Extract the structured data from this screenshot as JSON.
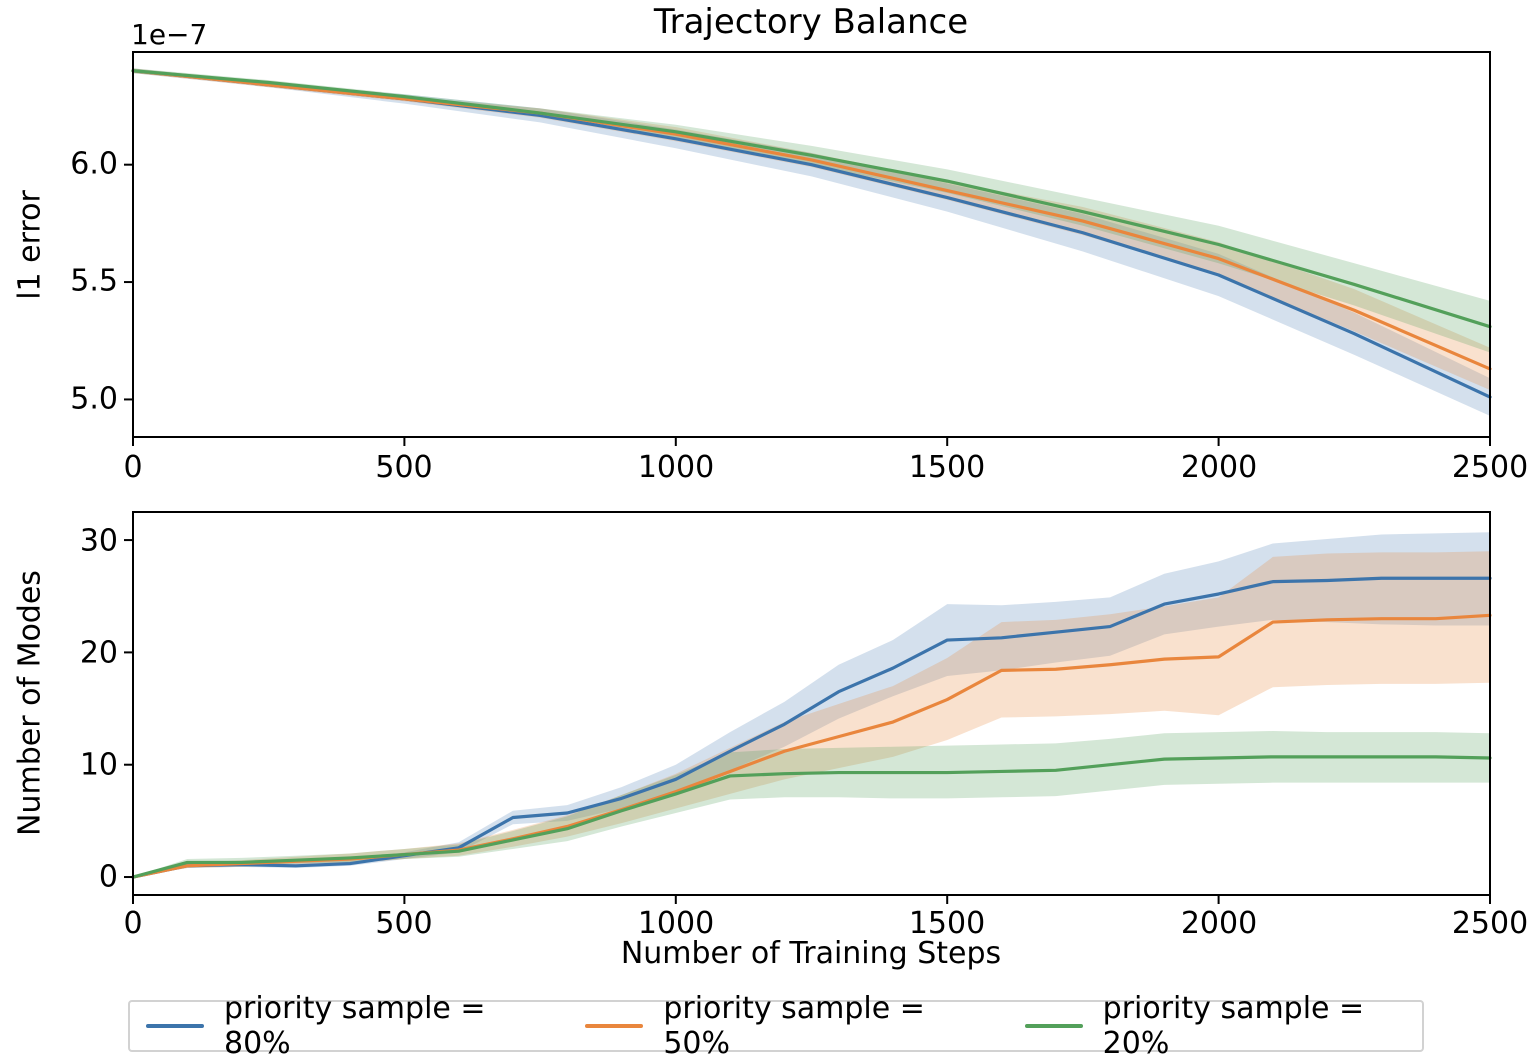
{
  "figure": {
    "title": "Trajectory Balance"
  },
  "chart_data": [
    {
      "type": "line",
      "title": "Trajectory Balance",
      "ylabel": "l1 error",
      "offset_text": "1e−7",
      "x": [
        0,
        250,
        500,
        750,
        1000,
        1250,
        1500,
        1750,
        2000,
        2250,
        2500
      ],
      "xlim": [
        0,
        2500
      ],
      "ylim": [
        4.84,
        6.48
      ],
      "xticks": [
        0,
        500,
        1000,
        1500,
        2000,
        2500
      ],
      "yticks": [
        6.0,
        5.5,
        5.0
      ],
      "xtick_labels": [
        "0",
        "500",
        "1000",
        "1500",
        "2000",
        "2500"
      ],
      "ytick_labels": [
        "6.0",
        "5.5",
        "5.0"
      ],
      "grid": false,
      "series": [
        {
          "name": "priority sample = 80%",
          "color": "#3c74ab",
          "values": [
            6.4,
            6.34,
            6.28,
            6.21,
            6.11,
            6.0,
            5.86,
            5.71,
            5.53,
            5.28,
            5.01
          ],
          "lower": [
            6.39,
            6.33,
            6.26,
            6.18,
            6.07,
            5.95,
            5.8,
            5.63,
            5.44,
            5.19,
            4.93
          ],
          "upper": [
            6.41,
            6.35,
            6.3,
            6.24,
            6.15,
            6.05,
            5.92,
            5.79,
            5.62,
            5.37,
            5.09
          ]
        },
        {
          "name": "priority sample = 50%",
          "color": "#e9863d",
          "values": [
            6.4,
            6.34,
            6.28,
            6.22,
            6.13,
            6.02,
            5.89,
            5.76,
            5.6,
            5.38,
            5.13
          ],
          "lower": [
            6.39,
            6.33,
            6.27,
            6.2,
            6.1,
            5.99,
            5.85,
            5.7,
            5.53,
            5.29,
            5.04
          ],
          "upper": [
            6.41,
            6.35,
            6.29,
            6.24,
            6.16,
            6.05,
            5.93,
            5.82,
            5.67,
            5.47,
            5.22
          ]
        },
        {
          "name": "priority sample = 20%",
          "color": "#53a05a",
          "values": [
            6.4,
            6.35,
            6.29,
            6.22,
            6.14,
            6.04,
            5.93,
            5.8,
            5.66,
            5.49,
            5.31
          ],
          "lower": [
            6.39,
            6.34,
            6.28,
            6.21,
            6.11,
            6.0,
            5.88,
            5.74,
            5.58,
            5.4,
            5.2
          ],
          "upper": [
            6.41,
            6.36,
            6.3,
            6.24,
            6.17,
            6.08,
            5.98,
            5.86,
            5.74,
            5.58,
            5.42
          ]
        }
      ]
    },
    {
      "type": "line",
      "ylabel": "Number of Modes",
      "xlabel": "Number of Training Steps",
      "x": [
        0,
        100,
        200,
        300,
        400,
        500,
        600,
        700,
        800,
        900,
        1000,
        1100,
        1200,
        1300,
        1400,
        1500,
        1600,
        1700,
        1800,
        1900,
        2000,
        2100,
        2200,
        2300,
        2400,
        2500
      ],
      "xlim": [
        0,
        2500
      ],
      "ylim": [
        -1.6,
        32.5
      ],
      "xticks": [
        0,
        500,
        1000,
        1500,
        2000,
        2500
      ],
      "yticks": [
        30,
        20,
        10,
        0
      ],
      "xtick_labels": [
        "0",
        "500",
        "1000",
        "1500",
        "2000",
        "2500"
      ],
      "ytick_labels": [
        "30",
        "20",
        "10",
        "0"
      ],
      "grid": false,
      "series": [
        {
          "name": "priority sample = 80%",
          "color": "#3c74ab",
          "values": [
            0,
            1.0,
            1.1,
            1.0,
            1.2,
            1.9,
            2.6,
            5.3,
            5.7,
            7.0,
            8.7,
            11.2,
            13.6,
            16.5,
            18.6,
            21.1,
            21.3,
            21.8,
            22.3,
            24.3,
            25.2,
            26.3,
            26.4,
            26.6,
            26.6,
            26.6
          ],
          "lower": [
            0,
            0.8,
            0.9,
            0.8,
            1.0,
            1.6,
            2.2,
            4.7,
            5.0,
            6.1,
            7.4,
            9.5,
            11.6,
            14.1,
            16.1,
            17.9,
            18.4,
            19.1,
            19.7,
            21.6,
            22.3,
            22.9,
            22.7,
            22.5,
            22.4,
            22.4
          ],
          "upper": [
            0,
            1.2,
            1.3,
            1.3,
            1.5,
            2.2,
            3.1,
            5.9,
            6.4,
            8.0,
            10.0,
            12.9,
            15.6,
            18.9,
            21.1,
            24.3,
            24.2,
            24.5,
            24.9,
            27.0,
            28.1,
            29.7,
            30.1,
            30.5,
            30.6,
            30.7
          ]
        },
        {
          "name": "priority sample = 50%",
          "color": "#e9863d",
          "values": [
            0,
            1.0,
            1.2,
            1.4,
            1.6,
            2.0,
            2.4,
            3.4,
            4.5,
            6.0,
            7.6,
            9.4,
            11.2,
            12.5,
            13.8,
            15.8,
            18.4,
            18.5,
            18.9,
            19.4,
            19.6,
            22.7,
            22.9,
            23.0,
            23.0,
            23.3
          ],
          "lower": [
            0,
            0.8,
            0.9,
            1.0,
            1.2,
            1.6,
            1.9,
            2.7,
            3.6,
            4.8,
            6.1,
            7.4,
            8.7,
            9.7,
            10.7,
            12.2,
            14.2,
            14.3,
            14.5,
            14.8,
            14.4,
            16.9,
            17.1,
            17.2,
            17.2,
            17.3
          ],
          "upper": [
            0,
            1.2,
            1.5,
            1.8,
            2.1,
            2.5,
            3.0,
            4.2,
            5.5,
            7.3,
            9.2,
            11.5,
            13.8,
            15.4,
            17.0,
            19.5,
            22.7,
            22.9,
            23.4,
            24.1,
            24.9,
            28.5,
            28.8,
            28.9,
            28.9,
            29.0
          ]
        },
        {
          "name": "priority sample = 20%",
          "color": "#53a05a",
          "values": [
            0,
            1.3,
            1.3,
            1.5,
            1.7,
            2.0,
            2.3,
            3.3,
            4.3,
            5.9,
            7.4,
            9.0,
            9.2,
            9.3,
            9.3,
            9.3,
            9.4,
            9.5,
            10.0,
            10.5,
            10.6,
            10.7,
            10.7,
            10.7,
            10.7,
            10.6
          ],
          "lower": [
            0,
            1.0,
            1.0,
            1.2,
            1.3,
            1.6,
            1.8,
            2.5,
            3.2,
            4.5,
            5.7,
            6.9,
            7.1,
            7.1,
            7.0,
            7.0,
            7.1,
            7.2,
            7.7,
            8.2,
            8.3,
            8.4,
            8.4,
            8.4,
            8.4,
            8.4
          ],
          "upper": [
            0,
            1.6,
            1.7,
            1.9,
            2.1,
            2.5,
            2.9,
            4.1,
            5.4,
            7.3,
            9.1,
            11.1,
            11.4,
            11.5,
            11.6,
            11.7,
            11.8,
            11.9,
            12.3,
            12.8,
            12.9,
            13.0,
            12.9,
            12.9,
            12.9,
            12.8
          ]
        }
      ]
    }
  ],
  "legend": {
    "items": [
      {
        "label": "priority sample = 80%",
        "color": "#3c74ab"
      },
      {
        "label": "priority sample = 50%",
        "color": "#e9863d"
      },
      {
        "label": "priority sample = 20%",
        "color": "#53a05a"
      }
    ]
  }
}
